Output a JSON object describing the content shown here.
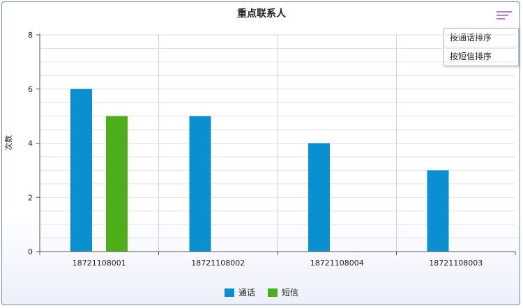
{
  "colors": {
    "call": "#0a8fd0",
    "sms": "#4caf1a"
  },
  "menu": {
    "icon": "hamburger-menu-icon",
    "items": [
      {
        "label": "按通话排序"
      },
      {
        "label": "按短信排序"
      }
    ]
  },
  "chart_data": {
    "type": "bar",
    "title": "重点联系人",
    "xlabel": "",
    "ylabel": "次数",
    "ylim": [
      0,
      8
    ],
    "yticks": [
      0,
      2,
      4,
      6,
      8
    ],
    "categories": [
      "18721108001",
      "18721108002",
      "18721108004",
      "18721108003"
    ],
    "series": [
      {
        "name": "通话",
        "values": [
          6,
          5,
          4,
          3
        ]
      },
      {
        "name": "短信",
        "values": [
          5,
          0,
          0,
          0
        ]
      }
    ],
    "grid": true,
    "legend_position": "bottom-center"
  }
}
